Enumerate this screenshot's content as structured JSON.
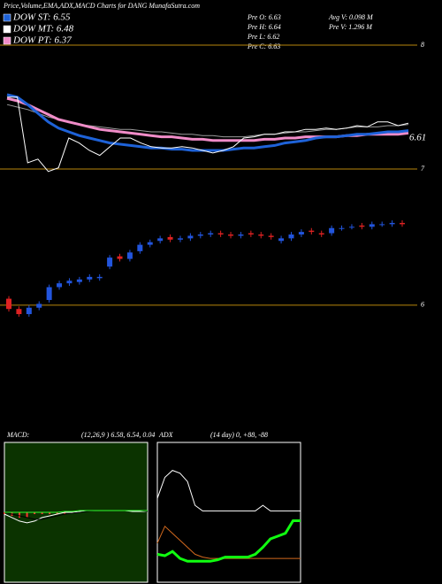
{
  "title": "Price,Volume,EMA,ADX,MACD Charts for DANG MunafaSutra.com",
  "legend": [
    {
      "label": "DOW ST: 6.55",
      "color": "#1e62d8"
    },
    {
      "label": "DOW MT: 6.48",
      "color": "#ffffff"
    },
    {
      "label": "DOW PT: 6.37",
      "color": "#f08cc8"
    }
  ],
  "info": [
    "Pre O: 6.63",
    "Pre H: 6.64",
    "Pre L: 6.62",
    "Pre C: 6.63",
    "Avg V: 0.098 M",
    "Pre V: 1.296 M"
  ],
  "chart_data": [
    {
      "type": "line",
      "ylim": [
        6.9,
        8.15
      ],
      "yticks": [
        7,
        8
      ],
      "tick_color": "#b8860b",
      "last_label": "6.61",
      "series": [
        {
          "name": "EMA long",
          "color": "#9a9a9a",
          "width": 1,
          "values": [
            7.52,
            7.5,
            7.48,
            7.45,
            7.42,
            7.4,
            7.38,
            7.36,
            7.35,
            7.34,
            7.33,
            7.32,
            7.32,
            7.31,
            7.3,
            7.3,
            7.29,
            7.28,
            7.28,
            7.27,
            7.27,
            7.26,
            7.26,
            7.26,
            7.27,
            7.28,
            7.28,
            7.29,
            7.3,
            7.3,
            7.31,
            7.32,
            7.32,
            7.33,
            7.34,
            7.34,
            7.34,
            7.35,
            7.35,
            7.36
          ]
        },
        {
          "name": "EMA mid",
          "color": "#f08cc8",
          "width": 3,
          "values": [
            7.57,
            7.55,
            7.52,
            7.48,
            7.44,
            7.4,
            7.38,
            7.36,
            7.34,
            7.32,
            7.31,
            7.3,
            7.29,
            7.28,
            7.27,
            7.26,
            7.26,
            7.25,
            7.24,
            7.24,
            7.23,
            7.23,
            7.23,
            7.23,
            7.23,
            7.24,
            7.24,
            7.25,
            7.25,
            7.26,
            7.26,
            7.26,
            7.26,
            7.27,
            7.27,
            7.28,
            7.28,
            7.28,
            7.28,
            7.29
          ]
        },
        {
          "name": "EMA short",
          "color": "#1e62d8",
          "width": 3,
          "values": [
            7.6,
            7.58,
            7.52,
            7.45,
            7.38,
            7.33,
            7.3,
            7.27,
            7.25,
            7.23,
            7.21,
            7.2,
            7.19,
            7.18,
            7.17,
            7.17,
            7.16,
            7.16,
            7.15,
            7.15,
            7.15,
            7.15,
            7.16,
            7.17,
            7.17,
            7.18,
            7.19,
            7.21,
            7.22,
            7.23,
            7.25,
            7.26,
            7.26,
            7.27,
            7.28,
            7.28,
            7.29,
            7.3,
            7.3,
            7.31
          ]
        },
        {
          "name": "Price",
          "color": "#ffffff",
          "width": 1,
          "values": [
            7.58,
            7.58,
            7.05,
            7.08,
            6.98,
            7.01,
            7.25,
            7.21,
            7.15,
            7.11,
            7.18,
            7.25,
            7.25,
            7.21,
            7.18,
            7.17,
            7.17,
            7.18,
            7.17,
            7.15,
            7.13,
            7.15,
            7.18,
            7.25,
            7.26,
            7.28,
            7.28,
            7.3,
            7.3,
            7.32,
            7.32,
            7.33,
            7.32,
            7.33,
            7.35,
            7.34,
            7.38,
            7.38,
            7.35,
            7.37
          ]
        }
      ]
    },
    {
      "type": "candlestick",
      "ylim": [
        5.62,
        6.86
      ],
      "yticks": [
        6
      ],
      "tick_color": "#b8860b",
      "up_color": "#2255dd",
      "down_color": "#dd2222",
      "open": [
        6.05,
        5.97,
        5.93,
        5.98,
        6.04,
        6.14,
        6.17,
        6.18,
        6.2,
        6.21,
        6.3,
        6.38,
        6.36,
        6.42,
        6.47,
        6.5,
        6.53,
        6.51,
        6.52,
        6.54,
        6.55,
        6.56,
        6.55,
        6.54,
        6.56,
        6.55,
        6.54,
        6.5,
        6.52,
        6.55,
        6.58,
        6.56,
        6.56,
        6.6,
        6.61,
        6.62,
        6.61,
        6.63,
        6.63,
        6.64
      ],
      "high": [
        6.07,
        5.99,
        6.0,
        6.03,
        6.16,
        6.19,
        6.21,
        6.22,
        6.24,
        6.24,
        6.39,
        6.4,
        6.43,
        6.49,
        6.51,
        6.54,
        6.55,
        6.54,
        6.56,
        6.57,
        6.58,
        6.58,
        6.57,
        6.57,
        6.58,
        6.57,
        6.56,
        6.54,
        6.57,
        6.59,
        6.6,
        6.58,
        6.62,
        6.62,
        6.63,
        6.64,
        6.65,
        6.65,
        6.66,
        6.66
      ],
      "low": [
        5.95,
        5.91,
        5.91,
        5.96,
        6.02,
        6.12,
        6.15,
        6.16,
        6.18,
        6.19,
        6.28,
        6.34,
        6.34,
        6.4,
        6.45,
        6.48,
        6.49,
        6.49,
        6.5,
        6.52,
        6.53,
        6.53,
        6.52,
        6.52,
        6.53,
        6.52,
        6.51,
        6.48,
        6.5,
        6.53,
        6.55,
        6.53,
        6.54,
        6.58,
        6.59,
        6.59,
        6.59,
        6.61,
        6.61,
        6.61
      ],
      "close": [
        5.97,
        5.93,
        5.98,
        6.01,
        6.14,
        6.17,
        6.19,
        6.2,
        6.22,
        6.22,
        6.37,
        6.36,
        6.41,
        6.47,
        6.49,
        6.52,
        6.51,
        6.52,
        6.54,
        6.55,
        6.56,
        6.55,
        6.54,
        6.55,
        6.55,
        6.54,
        6.53,
        6.52,
        6.55,
        6.57,
        6.57,
        6.55,
        6.6,
        6.6,
        6.61,
        6.61,
        6.63,
        6.63,
        6.64,
        6.63
      ]
    },
    {
      "type": "macd",
      "title": "MACD:",
      "params": "(12,26,9 ) 6.58, 6.54, 0.04",
      "ylim": [
        -0.4,
        0.4
      ],
      "background": "#0b3300",
      "histogram": [
        -0.01,
        -0.02,
        -0.03,
        -0.03,
        -0.01,
        -0.01,
        -0.01,
        -0.01,
        -0.01,
        -0.005,
        0,
        0,
        0,
        0,
        0,
        0,
        0,
        0,
        0,
        0
      ],
      "hist_color": "#ff3030",
      "series": [
        {
          "name": "MACD",
          "color": "#ffffff",
          "values": [
            -0.01,
            -0.03,
            -0.05,
            -0.06,
            -0.05,
            -0.03,
            -0.02,
            -0.01,
            0,
            0,
            0.005,
            0.01,
            0.01,
            0.01,
            0.01,
            0.01,
            0.01,
            0.005,
            0.005,
            0.005
          ]
        },
        {
          "name": "Signal",
          "color": "#000000",
          "values": [
            0,
            -0.01,
            -0.02,
            -0.03,
            -0.04,
            -0.04,
            -0.03,
            -0.02,
            -0.01,
            -0.005,
            0,
            0.005,
            0.01,
            0.01,
            0.01,
            0.01,
            0.01,
            0.01,
            0.01,
            0.005
          ]
        },
        {
          "name": "Zero",
          "color": "#30ff30",
          "values": [
            0,
            0,
            0,
            0,
            0,
            0,
            0,
            0,
            0.005,
            0.005,
            0.01,
            0.01,
            0.01,
            0.01,
            0.01,
            0.01,
            0.01,
            0.01,
            0.01,
            0.01
          ]
        }
      ]
    },
    {
      "type": "adx",
      "title": "ADX",
      "params": "(14 day) 0, +88, -88",
      "ylim": [
        0,
        100
      ],
      "background": "#000000",
      "series": [
        {
          "name": "ADX",
          "color": "#ffffff",
          "width": 1,
          "values": [
            60,
            75,
            80,
            78,
            72,
            55,
            51,
            51,
            51,
            51,
            51,
            51,
            51,
            51,
            55,
            51,
            51,
            51,
            51,
            51
          ]
        },
        {
          "name": "-DI",
          "color": "#d2691e",
          "width": 1,
          "values": [
            28,
            40,
            35,
            30,
            25,
            20,
            18,
            17,
            17,
            17,
            17,
            17,
            17,
            17,
            17,
            17,
            17,
            17,
            17,
            17
          ]
        },
        {
          "name": "+DI",
          "color": "#10ff10",
          "width": 3,
          "values": [
            20,
            19,
            22,
            17,
            15,
            15,
            15,
            15,
            16,
            18,
            18,
            18,
            18,
            20,
            25,
            31,
            33,
            35,
            44,
            44
          ]
        }
      ]
    }
  ]
}
